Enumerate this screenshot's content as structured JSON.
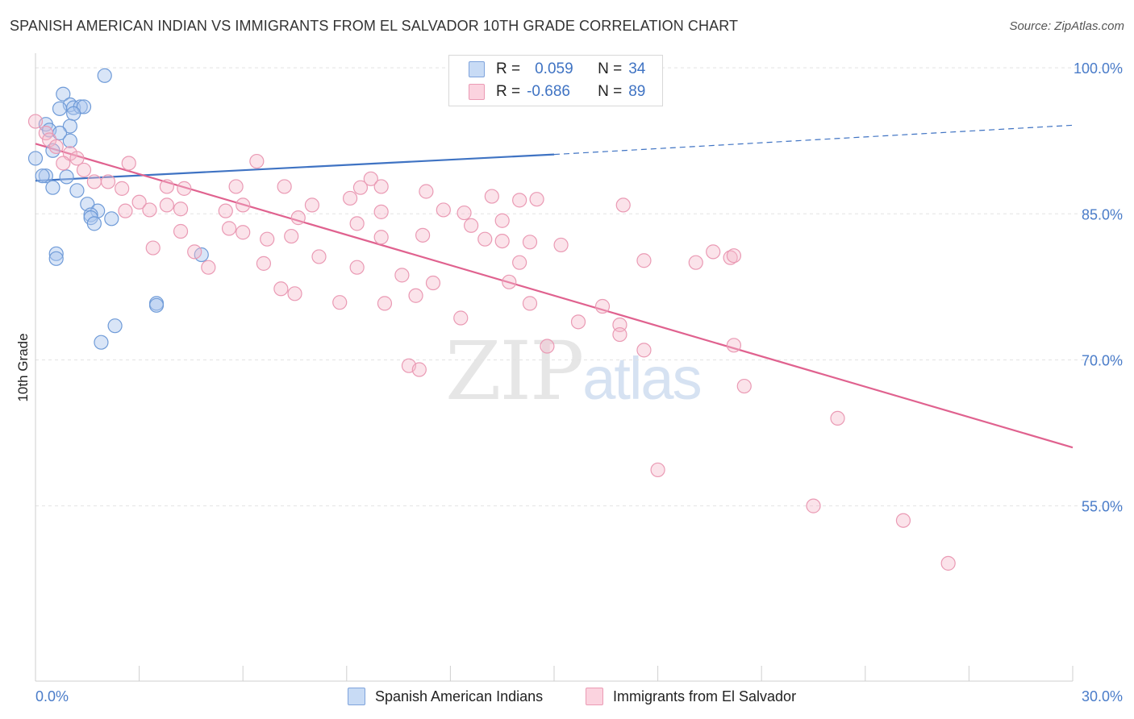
{
  "header": {
    "title": "SPANISH AMERICAN INDIAN VS IMMIGRANTS FROM EL SALVADOR 10TH GRADE CORRELATION CHART",
    "source": "Source: ZipAtlas.com"
  },
  "watermark": {
    "zip": "ZIP",
    "atlas": "atlas"
  },
  "legend": {
    "r_label": "R =",
    "n_label": "N =",
    "rows": [
      {
        "r": "0.059",
        "n": "34",
        "color": "#aac6ee"
      },
      {
        "r": "-0.686",
        "n": "89",
        "color": "#f6b9cb"
      }
    ]
  },
  "bottom_legend": {
    "series1": "Spanish American Indians",
    "series2": "Immigrants from El Salvador"
  },
  "chart_data": {
    "type": "scatter",
    "title": "SPANISH AMERICAN INDIAN VS IMMIGRANTS FROM EL SALVADOR 10TH GRADE CORRELATION CHART",
    "xlabel": "",
    "ylabel": "10th Grade",
    "xlim": [
      0,
      30
    ],
    "ylim": [
      37,
      101.5
    ],
    "x_tick_labels": [
      "0.0%",
      "30.0%"
    ],
    "y_ticks": [
      {
        "value": 100,
        "label": "100.0%"
      },
      {
        "value": 85,
        "label": "85.0%"
      },
      {
        "value": 70,
        "label": "70.0%"
      },
      {
        "value": 55,
        "label": "55.0%"
      }
    ],
    "grid": true,
    "colors": {
      "blue": "#3f73c3",
      "pink": "#e0628f",
      "blue_fill": "#aac6ee",
      "pink_fill": "#f6b9cb"
    },
    "series": [
      {
        "name": "Spanish American Indians",
        "color": "#3f73c3",
        "points": [
          [
            2.0,
            99.2
          ],
          [
            12.4,
            99.4
          ],
          [
            0.8,
            97.3
          ],
          [
            1.0,
            96.2
          ],
          [
            1.1,
            95.9
          ],
          [
            1.3,
            96.0
          ],
          [
            1.4,
            96.0
          ],
          [
            0.7,
            95.8
          ],
          [
            1.1,
            95.3
          ],
          [
            0.3,
            94.2
          ],
          [
            1.0,
            94.0
          ],
          [
            0.4,
            93.6
          ],
          [
            0.7,
            93.3
          ],
          [
            1.0,
            92.5
          ],
          [
            0.5,
            91.5
          ],
          [
            0.0,
            90.7
          ],
          [
            0.3,
            88.9
          ],
          [
            0.2,
            88.9
          ],
          [
            0.9,
            88.8
          ],
          [
            0.5,
            87.7
          ],
          [
            1.2,
            87.4
          ],
          [
            1.5,
            86.0
          ],
          [
            1.8,
            85.3
          ],
          [
            1.6,
            84.9
          ],
          [
            1.6,
            84.6
          ],
          [
            2.2,
            84.5
          ],
          [
            1.7,
            84.0
          ],
          [
            0.6,
            80.9
          ],
          [
            0.6,
            80.4
          ],
          [
            4.8,
            80.8
          ],
          [
            3.5,
            75.8
          ],
          [
            3.5,
            75.6
          ],
          [
            2.3,
            73.5
          ],
          [
            1.9,
            71.8
          ]
        ],
        "trend": {
          "x": [
            0,
            15
          ],
          "y": [
            88.4,
            91.1
          ],
          "dashed_to": [
            30,
            94.1
          ]
        }
      },
      {
        "name": "Immigrants from El Salvador",
        "color": "#e0628f",
        "points": [
          [
            0.0,
            94.5
          ],
          [
            0.3,
            93.3
          ],
          [
            0.4,
            92.6
          ],
          [
            0.6,
            91.9
          ],
          [
            1.0,
            91.2
          ],
          [
            1.2,
            90.7
          ],
          [
            0.8,
            90.2
          ],
          [
            1.4,
            89.5
          ],
          [
            2.7,
            90.2
          ],
          [
            6.4,
            90.4
          ],
          [
            9.7,
            88.6
          ],
          [
            3.8,
            87.8
          ],
          [
            1.7,
            88.3
          ],
          [
            2.1,
            88.3
          ],
          [
            2.5,
            87.6
          ],
          [
            4.3,
            87.6
          ],
          [
            5.8,
            87.8
          ],
          [
            7.2,
            87.8
          ],
          [
            9.4,
            87.7
          ],
          [
            10.0,
            87.8
          ],
          [
            9.1,
            86.6
          ],
          [
            11.3,
            87.3
          ],
          [
            14.5,
            86.5
          ],
          [
            13.2,
            86.8
          ],
          [
            14.0,
            86.4
          ],
          [
            3.0,
            86.2
          ],
          [
            3.8,
            85.9
          ],
          [
            4.2,
            85.5
          ],
          [
            6.0,
            85.9
          ],
          [
            8.0,
            85.9
          ],
          [
            5.5,
            85.3
          ],
          [
            7.6,
            84.6
          ],
          [
            3.3,
            85.4
          ],
          [
            2.6,
            85.3
          ],
          [
            10.0,
            85.2
          ],
          [
            11.8,
            85.4
          ],
          [
            12.4,
            85.1
          ],
          [
            17.0,
            85.9
          ],
          [
            12.6,
            83.8
          ],
          [
            9.3,
            84.0
          ],
          [
            13.5,
            84.3
          ],
          [
            5.6,
            83.5
          ],
          [
            6.0,
            83.1
          ],
          [
            7.4,
            82.7
          ],
          [
            4.2,
            83.2
          ],
          [
            3.4,
            81.5
          ],
          [
            10.0,
            82.6
          ],
          [
            11.2,
            82.8
          ],
          [
            13.0,
            82.4
          ],
          [
            13.5,
            82.2
          ],
          [
            14.3,
            82.1
          ],
          [
            15.2,
            81.8
          ],
          [
            6.7,
            82.4
          ],
          [
            4.6,
            81.1
          ],
          [
            8.2,
            80.6
          ],
          [
            6.6,
            79.9
          ],
          [
            5.0,
            79.5
          ],
          [
            9.3,
            79.5
          ],
          [
            14.0,
            80.0
          ],
          [
            17.6,
            80.2
          ],
          [
            19.1,
            80.0
          ],
          [
            20.1,
            80.5
          ],
          [
            19.6,
            81.1
          ],
          [
            20.2,
            80.7
          ],
          [
            10.6,
            78.7
          ],
          [
            11.5,
            77.9
          ],
          [
            13.7,
            78.0
          ],
          [
            7.1,
            77.3
          ],
          [
            7.5,
            76.8
          ],
          [
            8.8,
            75.9
          ],
          [
            10.1,
            75.8
          ],
          [
            11.0,
            76.6
          ],
          [
            14.3,
            75.8
          ],
          [
            12.3,
            74.3
          ],
          [
            16.4,
            75.5
          ],
          [
            15.7,
            73.9
          ],
          [
            16.9,
            73.6
          ],
          [
            16.9,
            72.6
          ],
          [
            17.6,
            71.0
          ],
          [
            20.2,
            71.5
          ],
          [
            14.8,
            71.4
          ],
          [
            10.8,
            69.4
          ],
          [
            11.1,
            69.0
          ],
          [
            20.5,
            67.3
          ],
          [
            23.2,
            64.0
          ],
          [
            18.0,
            58.7
          ],
          [
            22.5,
            55.0
          ],
          [
            25.1,
            53.5
          ],
          [
            26.4,
            49.1
          ]
        ],
        "trend": {
          "x": [
            0,
            30
          ],
          "y": [
            92.2,
            61.0
          ]
        }
      }
    ]
  }
}
